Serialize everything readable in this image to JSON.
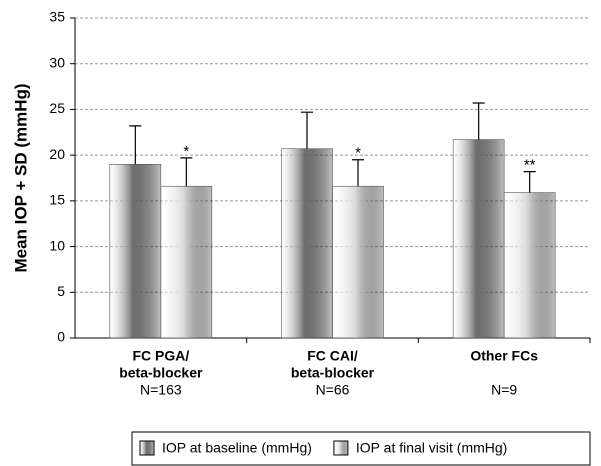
{
  "chart_data": {
    "type": "bar",
    "y_label": "Mean IOP + SD (mmHg)",
    "categories": [
      [
        "FC PGA/",
        "beta-blocker"
      ],
      [
        "FC CAI/",
        "beta-blocker"
      ],
      [
        "Other FCs"
      ]
    ],
    "group_sizes": [
      "N=163",
      "N=66",
      "N=9"
    ],
    "series": [
      {
        "name": "IOP at baseline (mmHg)",
        "color": "#6e6e6e",
        "values": [
          19.0,
          20.7,
          21.7
        ],
        "errors": [
          4.2,
          4.0,
          4.0
        ]
      },
      {
        "name": "IOP at final visit (mmHg)",
        "color": "#d9d9d9",
        "values": [
          16.6,
          16.6,
          15.9
        ],
        "errors": [
          3.1,
          2.9,
          2.3
        ],
        "annotations": [
          "*",
          "*",
          "**"
        ]
      }
    ],
    "ylim": [
      0,
      35
    ],
    "yticks": [
      0,
      5,
      10,
      15,
      20,
      25,
      30,
      35
    ],
    "grid": true
  }
}
